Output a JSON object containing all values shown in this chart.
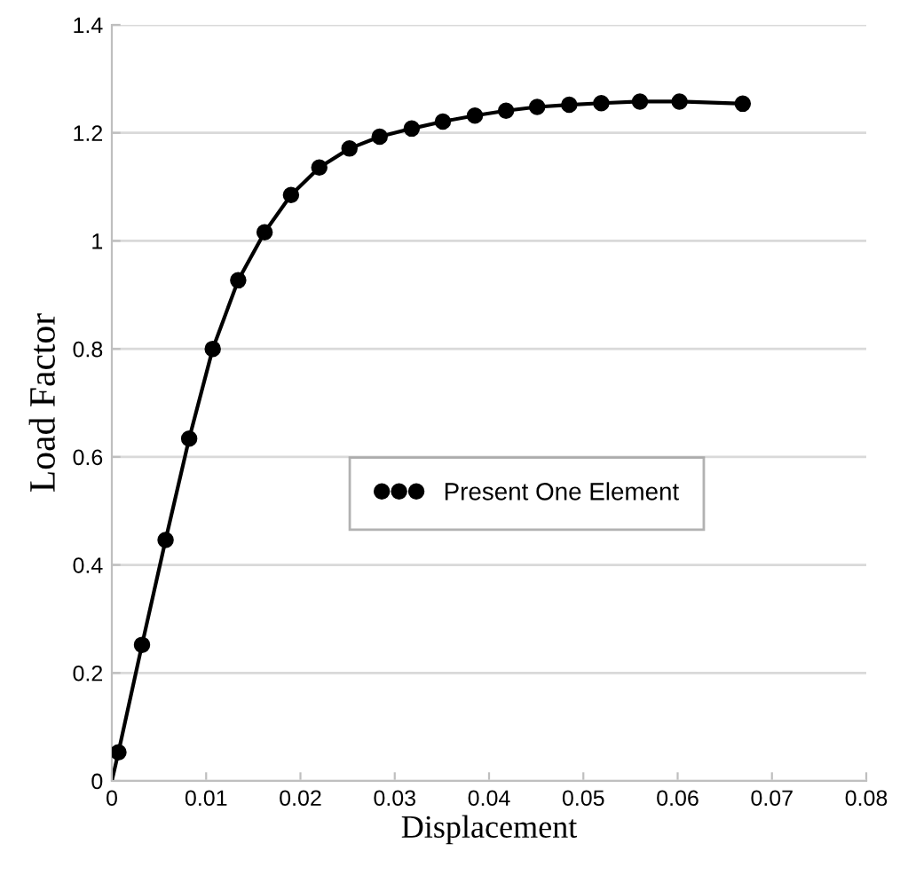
{
  "chart_data": {
    "type": "scatter",
    "xlabel": "Displacement",
    "ylabel": "Load Factor",
    "xlim": [
      0,
      0.08
    ],
    "ylim": [
      0,
      1.4
    ],
    "xticks": [
      0,
      0.01,
      0.02,
      0.03,
      0.04,
      0.05,
      0.06,
      0.07,
      0.08
    ],
    "yticks": [
      0,
      0.2,
      0.4,
      0.6,
      0.8,
      1,
      1.2,
      1.4
    ],
    "grid": "y",
    "legend": "center",
    "series": [
      {
        "type": "line",
        "color": "#000000",
        "line_style": "solid",
        "marker": "none",
        "x": [
          0,
          0.0007,
          0.0032,
          0.0057,
          0.0082,
          0.0107,
          0.0134,
          0.0162,
          0.019,
          0.022,
          0.0252,
          0.0284,
          0.0318,
          0.0351,
          0.0385,
          0.0418,
          0.0451,
          0.0485,
          0.0519,
          0.056,
          0.0602,
          0.0669
        ],
        "values": [
          0,
          0.053,
          0.252,
          0.446,
          0.634,
          0.8,
          0.927,
          1.016,
          1.085,
          1.136,
          1.171,
          1.193,
          1.208,
          1.221,
          1.232,
          1.241,
          1.248,
          1.252,
          1.255,
          1.258,
          1.258,
          1.254
        ]
      },
      {
        "name": "Present One Element",
        "color": "#000000",
        "marker": "circle",
        "x": [
          0.0007,
          0.0032,
          0.0057,
          0.0082,
          0.0107,
          0.0134,
          0.0162,
          0.019,
          0.022,
          0.0252,
          0.0284,
          0.0318,
          0.0351,
          0.0385,
          0.0418,
          0.0451,
          0.0485,
          0.0519,
          0.056,
          0.0602,
          0.0669
        ],
        "values": [
          0.053,
          0.252,
          0.446,
          0.634,
          0.8,
          0.927,
          1.016,
          1.085,
          1.136,
          1.171,
          1.193,
          1.208,
          1.221,
          1.232,
          1.241,
          1.248,
          1.252,
          1.255,
          1.258,
          1.258,
          1.254
        ]
      }
    ]
  }
}
